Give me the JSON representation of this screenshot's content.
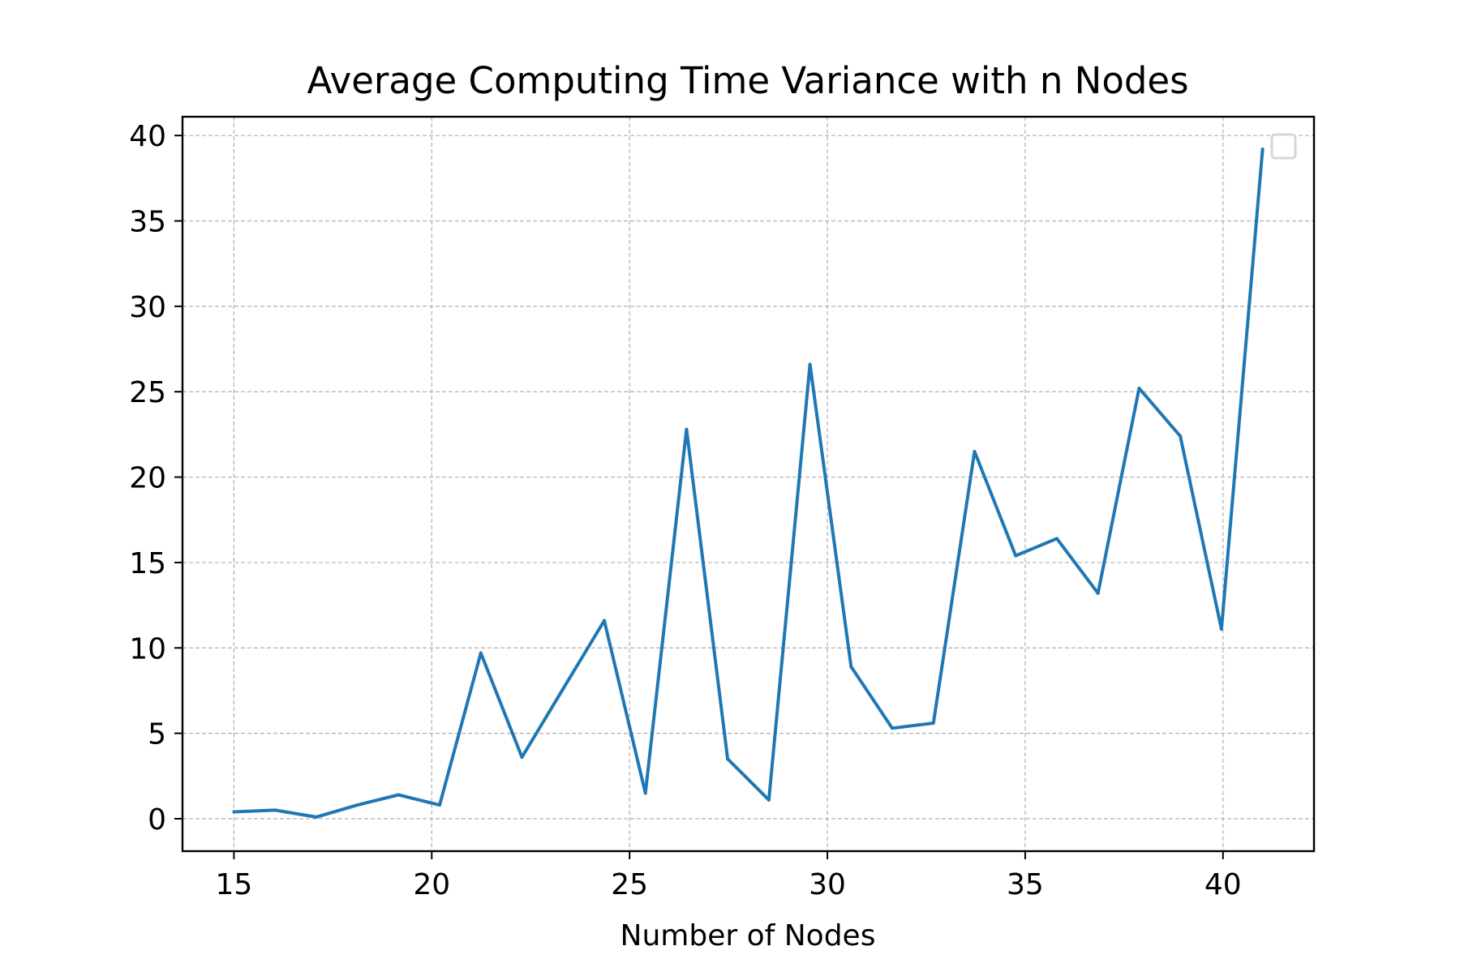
{
  "chart_data": {
    "type": "line",
    "title": "Average Computing Time Variance with n Nodes",
    "xlabel": "Number of Nodes",
    "ylabel": "",
    "xlim": [
      13.7,
      42.3
    ],
    "ylim": [
      -1.9,
      41.1
    ],
    "xticks": [
      15,
      20,
      25,
      30,
      35,
      40
    ],
    "yticks": [
      0,
      5,
      10,
      15,
      20,
      25,
      30,
      35,
      40
    ],
    "grid": true,
    "grid_style": "dashed",
    "legend": "upper-right (empty)",
    "series": [
      {
        "color": "#1f77b4",
        "x": [
          15,
          16.04,
          17.08,
          18.12,
          19.16,
          20.2,
          21.24,
          22.28,
          23.32,
          24.36,
          25.4,
          26.44,
          27.48,
          28.52,
          29.56,
          30.6,
          31.64,
          32.68,
          33.72,
          34.76,
          35.8,
          36.84,
          37.88,
          38.92,
          39.96,
          41.0
        ],
        "values": [
          0.4,
          0.5,
          0.1,
          0.8,
          1.4,
          0.8,
          9.7,
          3.6,
          7.6,
          11.6,
          1.5,
          22.8,
          3.5,
          1.1,
          26.6,
          8.9,
          5.3,
          5.6,
          21.5,
          15.4,
          16.4,
          13.2,
          25.2,
          22.4,
          11.1,
          39.2
        ]
      }
    ]
  }
}
